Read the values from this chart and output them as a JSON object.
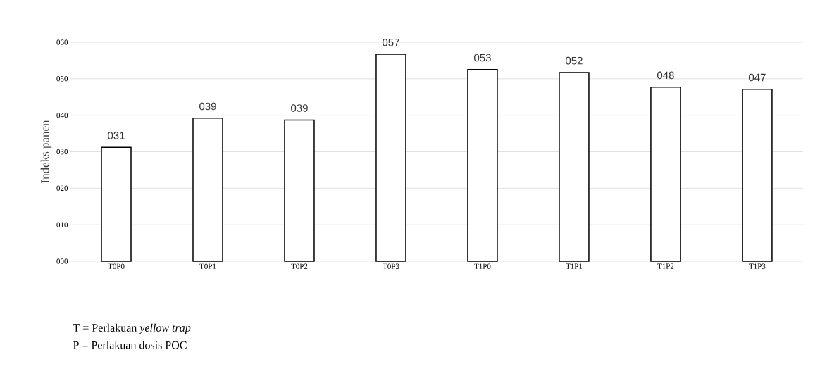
{
  "chart_data": {
    "type": "bar",
    "ylabel": "Indeks panen",
    "categories": [
      "T0P0",
      "T0P1",
      "T0P2",
      "T0P3",
      "T1P0",
      "T1P1",
      "T1P2",
      "T1P3"
    ],
    "values": [
      31.2,
      39.2,
      38.7,
      56.7,
      52.5,
      51.7,
      47.7,
      47.1
    ],
    "value_labels": [
      "031",
      "039",
      "039",
      "057",
      "053",
      "052",
      "048",
      "047"
    ],
    "color": "#ffffff",
    "ylim": [
      0,
      60
    ],
    "yticks": [
      {
        "value": 0,
        "label": "000"
      },
      {
        "value": 10,
        "label": "010"
      },
      {
        "value": 20,
        "label": "020"
      },
      {
        "value": 30,
        "label": "030"
      },
      {
        "value": 40,
        "label": "040"
      },
      {
        "value": 50,
        "label": "050"
      },
      {
        "value": 60,
        "label": "060"
      }
    ],
    "grid": "y",
    "annotations": [
      "T = Perlakuan *yellow trap*",
      "P = Perlakuan dosis POC"
    ]
  }
}
